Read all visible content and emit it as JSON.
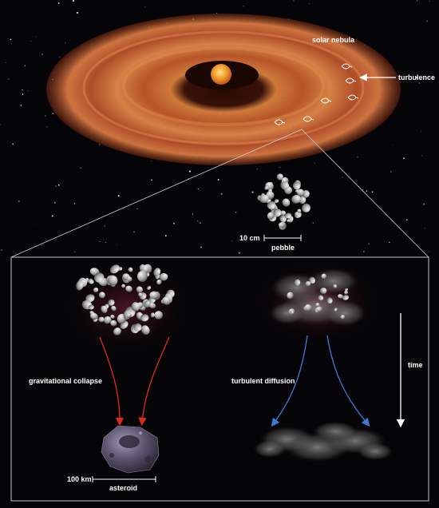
{
  "labels": {
    "solar_nebula": "solar nebula",
    "turbulence": "turbulence",
    "pebble_scale": "10 cm",
    "pebble": "pebble",
    "gravitational_collapse": "gravitational collapse",
    "turbulent_diffusion": "turbulent diffusion",
    "time": "time",
    "asteroid_scale": "100 km",
    "asteroid": "asteroid"
  },
  "colors": {
    "background": "#050507",
    "disk_outer": "#b8502a",
    "disk_inner": "#e08a4a",
    "sun": "#f0a030",
    "collapse_arrow": "#e02a1a",
    "diffusion_arrow": "#3a7ad8",
    "panel_border": "#c8c8c8",
    "text": "#ffffff"
  },
  "icons": [
    "sun",
    "turbulence-eddy-icon",
    "pebble-cloud",
    "asteroid-rock",
    "dust-cloud",
    "time-arrow-icon"
  ]
}
